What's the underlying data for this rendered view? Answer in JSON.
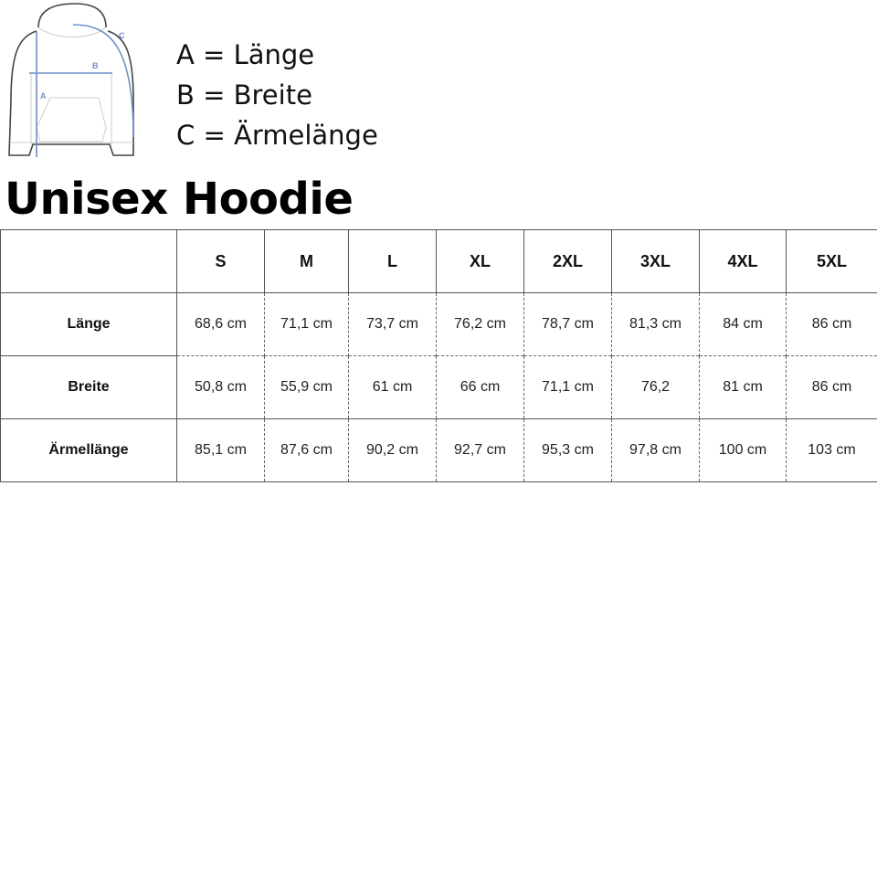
{
  "legend": {
    "a": "A = Länge",
    "b": "B = Breite",
    "c": "C = Ärmelänge"
  },
  "diagram_labels": {
    "a": "A",
    "b": "B",
    "c": "C"
  },
  "colors": {
    "measure_line": "#6f8fc9",
    "outline": "#444444"
  },
  "title": "Unisex Hoodie",
  "table": {
    "sizes": [
      "S",
      "M",
      "L",
      "XL",
      "2XL",
      "3XL",
      "4XL",
      "5XL"
    ],
    "rows": [
      {
        "label": "Länge",
        "values": [
          "68,6 cm",
          "71,1 cm",
          "73,7 cm",
          "76,2 cm",
          "78,7 cm",
          "81,3 cm",
          "84 cm",
          "86 cm"
        ]
      },
      {
        "label": "Breite",
        "values": [
          "50,8 cm",
          "55,9 cm",
          "61 cm",
          "66 cm",
          "71,1 cm",
          "76,2",
          "81 cm",
          "86 cm"
        ]
      },
      {
        "label": "Ärmellänge",
        "values": [
          "85,1 cm",
          "87,6 cm",
          "90,2 cm",
          "92,7 cm",
          "95,3 cm",
          "97,8 cm",
          "100 cm",
          "103 cm"
        ]
      }
    ]
  }
}
